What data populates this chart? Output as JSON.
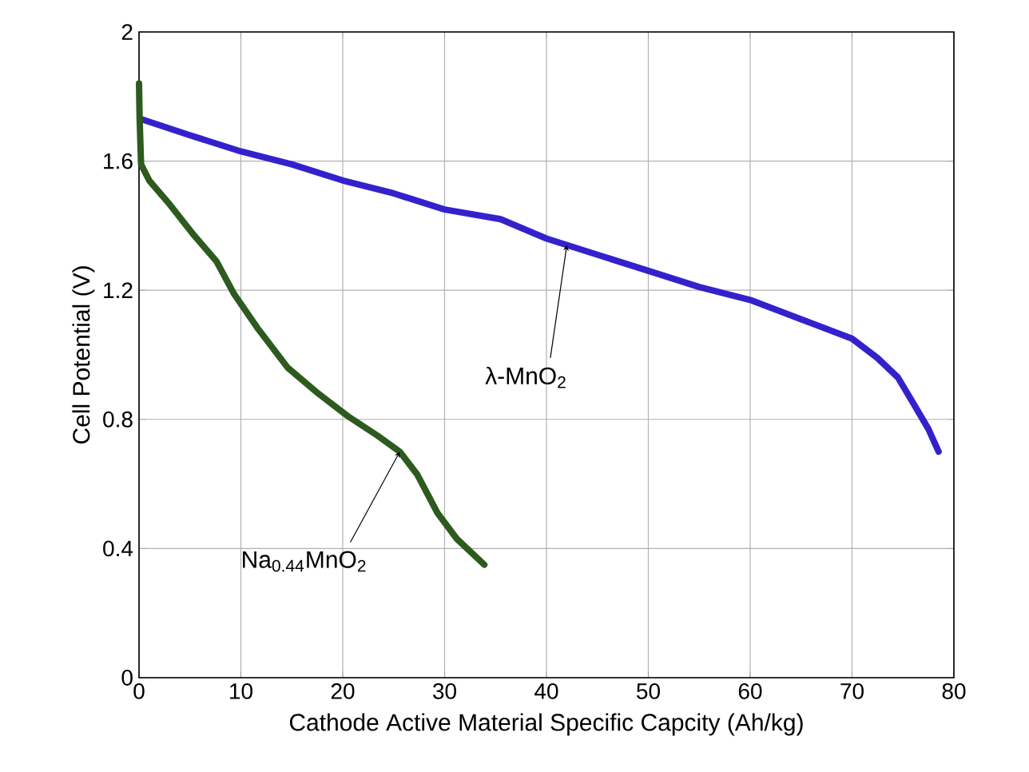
{
  "chart_data": {
    "type": "line",
    "xlabel": "Cathode Active Material Specific  Capcity (Ah/kg)",
    "ylabel": "Cell Potential (V)",
    "xlim": [
      0,
      80
    ],
    "ylim": [
      0,
      2
    ],
    "xticks": [
      0,
      10,
      20,
      30,
      40,
      50,
      60,
      70,
      80
    ],
    "yticks": [
      0,
      0.4,
      0.8,
      1.2,
      1.6,
      2
    ],
    "grid": true,
    "marker": "none",
    "line_style": "solid",
    "series": [
      {
        "color": "#3322cc",
        "x": [
          0.2,
          5,
          10,
          15,
          20,
          25,
          30,
          35.5,
          40,
          45,
          50,
          55,
          60,
          65,
          70,
          72.5,
          74.5,
          76.2,
          77.5,
          78.5
        ],
        "values": [
          1.73,
          1.68,
          1.63,
          1.59,
          1.54,
          1.5,
          1.45,
          1.42,
          1.36,
          1.31,
          1.26,
          1.21,
          1.17,
          1.11,
          1.05,
          0.99,
          0.93,
          0.84,
          0.77,
          0.7
        ]
      },
      {
        "color": "#2d5a1e",
        "x": [
          0,
          0.05,
          0.2,
          1,
          2.9,
          5.4,
          7.6,
          9.3,
          11.7,
          14.6,
          17.6,
          20.5,
          23.4,
          25.6,
          27.3,
          29.3,
          31.2,
          33.9
        ],
        "values": [
          1.84,
          1.74,
          1.59,
          1.54,
          1.47,
          1.37,
          1.29,
          1.19,
          1.08,
          0.96,
          0.88,
          0.81,
          0.75,
          0.7,
          0.63,
          0.51,
          0.43,
          0.35
        ]
      }
    ],
    "annotations": [
      {
        "text": "λ-MnO$_{2}$",
        "x": 42,
        "y": 1.34
      },
      {
        "text": "Na$_{0.44}$MnO$_{2}$",
        "x": 25.6,
        "y": 0.7
      }
    ]
  }
}
